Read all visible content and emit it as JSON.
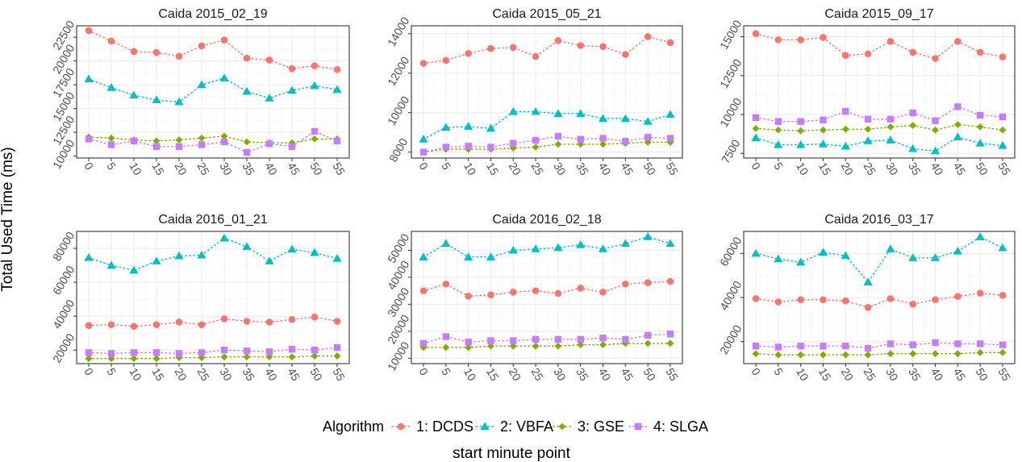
{
  "chart_data": {
    "type": "line",
    "ylabel": "Total Used Time (ms)",
    "xlabel": "start minute point",
    "legend_title": "Algorithm",
    "legend_position": "bottom",
    "x": [
      "0",
      "5",
      "10",
      "15",
      "20",
      "25",
      "30",
      "35",
      "40",
      "45",
      "50",
      "55"
    ],
    "series_styles": [
      {
        "name": "1: DCDS",
        "color": "#F8766D",
        "marker": "circle"
      },
      {
        "name": "2: VBFA",
        "color": "#00BFC4",
        "marker": "triangle"
      },
      {
        "name": "3: GSE",
        "color": "#7CAE00",
        "marker": "diamond"
      },
      {
        "name": "4: SLGA",
        "color": "#C77CFF",
        "marker": "square"
      }
    ],
    "panels": [
      {
        "title": "Caida 2015_02_19",
        "ylim": [
          9800,
          23700
        ],
        "yticks": [
          "10000",
          "12500",
          "15000",
          "17500",
          "20000",
          "22500"
        ],
        "series": [
          {
            "name": "1: DCDS",
            "values": [
              23200,
              22100,
              21000,
              20900,
              20500,
              21600,
              22200,
              20300,
              20100,
              19200,
              19500,
              19100
            ]
          },
          {
            "name": "2: VBFA",
            "values": [
              18100,
              17200,
              16400,
              15900,
              15700,
              17500,
              18200,
              16800,
              16100,
              16900,
              17400,
              17000
            ]
          },
          {
            "name": "3: GSE",
            "values": [
              12000,
              11900,
              11700,
              11600,
              11700,
              11900,
              12100,
              11500,
              11400,
              11400,
              11800,
              11800
            ]
          },
          {
            "name": "4: SLGA",
            "values": [
              11800,
              11200,
              11600,
              11000,
              11000,
              11200,
              11500,
              10400,
              11300,
              11000,
              12600,
              11600
            ]
          }
        ]
      },
      {
        "title": "Caida 2015_05_21",
        "ylim": [
          7700,
          14400
        ],
        "yticks": [
          "8000",
          "10000",
          "12000",
          "14000"
        ],
        "series": [
          {
            "name": "1: DCDS",
            "values": [
              12500,
              12650,
              13000,
              13250,
              13300,
              12850,
              13650,
              13400,
              13350,
              12950,
              13850,
              13550
            ]
          },
          {
            "name": "2: VBFA",
            "values": [
              8650,
              9250,
              9300,
              9200,
              10050,
              10050,
              9950,
              9950,
              9700,
              9700,
              9550,
              9900
            ]
          },
          {
            "name": "3: GSE",
            "values": [
              8000,
              8150,
              8150,
              8150,
              8200,
              8250,
              8400,
              8400,
              8400,
              8450,
              8500,
              8500
            ]
          },
          {
            "name": "4: SLGA",
            "values": [
              8000,
              8250,
              8300,
              8250,
              8450,
              8600,
              8800,
              8650,
              8700,
              8550,
              8750,
              8700
            ]
          }
        ]
      },
      {
        "title": "Caida 2015_09_17",
        "ylim": [
          7200,
          15700
        ],
        "yticks": [
          "7500",
          "10000",
          "12500",
          "15000"
        ],
        "series": [
          {
            "name": "1: DCDS",
            "values": [
              15200,
              14800,
              14800,
              14950,
              13800,
              13900,
              14700,
              14000,
              13600,
              14700,
              14000,
              13700
            ]
          },
          {
            "name": "2: VBFA",
            "values": [
              8500,
              8050,
              8050,
              8100,
              7950,
              8300,
              8350,
              7800,
              7650,
              8550,
              8150,
              8000
            ]
          },
          {
            "name": "3: GSE",
            "values": [
              9100,
              9000,
              8950,
              9000,
              9050,
              9050,
              9200,
              9300,
              9000,
              9350,
              9200,
              9000
            ]
          },
          {
            "name": "4: SLGA",
            "values": [
              9800,
              9550,
              9550,
              9650,
              10200,
              9700,
              9700,
              10100,
              9600,
              10500,
              9950,
              9850
            ]
          }
        ]
      },
      {
        "title": "Caida 2016_01_21",
        "ylim": [
          12000,
          90000
        ],
        "yticks": [
          "20000",
          "40000",
          "60000",
          "80000"
        ],
        "series": [
          {
            "name": "1: DCDS",
            "values": [
              34500,
              35000,
              34000,
              35000,
              36500,
              35000,
              38500,
              37000,
              36500,
              38000,
              39500,
              37000
            ]
          },
          {
            "name": "2: VBFA",
            "values": [
              74500,
              70000,
              67000,
              72500,
              75500,
              76000,
              86000,
              81000,
              72500,
              79500,
              77500,
              74000
            ]
          },
          {
            "name": "3: GSE",
            "values": [
              15000,
              15000,
              15000,
              15000,
              15500,
              15500,
              16000,
              16000,
              16000,
              16000,
              16500,
              16500
            ]
          },
          {
            "name": "4: SLGA",
            "values": [
              18500,
              18000,
              18500,
              18500,
              18000,
              18500,
              20000,
              19500,
              19000,
              20500,
              20000,
              21500
            ]
          }
        ]
      },
      {
        "title": "Caida 2016_02_18",
        "ylim": [
          8000,
          57000
        ],
        "yticks": [
          "10000",
          "20000",
          "30000",
          "40000",
          "50000"
        ],
        "series": [
          {
            "name": "1: DCDS",
            "values": [
              35000,
              37500,
              33000,
              33500,
              34500,
              35000,
              34000,
              36000,
              34500,
              37500,
              38000,
              38500
            ]
          },
          {
            "name": "2: VBFA",
            "values": [
              47500,
              52500,
              47500,
              47500,
              50000,
              50500,
              51000,
              52000,
              50500,
              52500,
              55000,
              52500
            ]
          },
          {
            "name": "3: GSE",
            "values": [
              14000,
              14000,
              14000,
              14500,
              14500,
              14500,
              14500,
              15000,
              15000,
              15500,
              15500,
              15500
            ]
          },
          {
            "name": "4: SLGA",
            "values": [
              15500,
              18000,
              16000,
              16500,
              16500,
              17000,
              17000,
              17000,
              17500,
              17000,
              18500,
              19000
            ]
          }
        ]
      },
      {
        "title": "Caida 2016_03_17",
        "ylim": [
          10000,
          70000
        ],
        "yticks": [
          "20000",
          "40000",
          "60000"
        ],
        "series": [
          {
            "name": "1: DCDS",
            "values": [
              39500,
              38000,
              39000,
              39000,
              38500,
              35500,
              39500,
              37000,
              39000,
              40500,
              42000,
              41000
            ]
          },
          {
            "name": "2: VBFA",
            "values": [
              60000,
              57500,
              56000,
              60500,
              59000,
              47000,
              62000,
              58000,
              58000,
              61000,
              67500,
              62500
            ]
          },
          {
            "name": "3: GSE",
            "values": [
              14500,
              14000,
              14000,
              14000,
              14000,
              14000,
              14500,
              14500,
              14500,
              14500,
              15000,
              15000
            ]
          },
          {
            "name": "4: SLGA",
            "values": [
              18000,
              17500,
              18000,
              18000,
              18000,
              17000,
              19000,
              18500,
              19500,
              19000,
              19000,
              18500
            ]
          }
        ]
      }
    ]
  }
}
